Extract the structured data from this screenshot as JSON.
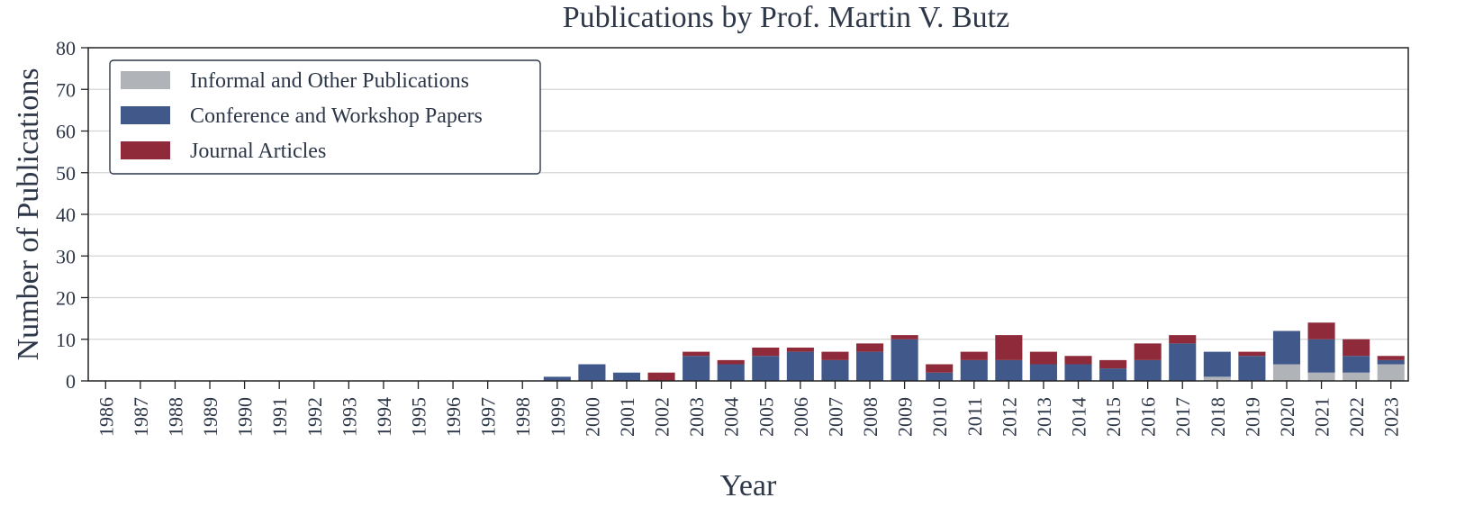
{
  "chart_data": {
    "type": "bar",
    "stacked": true,
    "title": "Publications by Prof. Martin V. Butz",
    "xlabel": "Year",
    "ylabel": "Number of Publications",
    "ylim": [
      0,
      80
    ],
    "yticks": [
      0,
      10,
      20,
      30,
      40,
      50,
      60,
      70,
      80
    ],
    "grid": "horizontal",
    "legend_position": "top-left",
    "categories": [
      "1986",
      "1987",
      "1988",
      "1989",
      "1990",
      "1991",
      "1992",
      "1993",
      "1994",
      "1995",
      "1996",
      "1997",
      "1998",
      "1999",
      "2000",
      "2001",
      "2002",
      "2003",
      "2004",
      "2005",
      "2006",
      "2007",
      "2008",
      "2009",
      "2010",
      "2011",
      "2012",
      "2013",
      "2014",
      "2015",
      "2016",
      "2017",
      "2018",
      "2019",
      "2020",
      "2021",
      "2022",
      "2023"
    ],
    "series": [
      {
        "name": "Informal and Other Publications",
        "color": "#b0b3b8",
        "values": [
          0,
          0,
          0,
          0,
          0,
          0,
          0,
          0,
          0,
          0,
          0,
          0,
          0,
          0,
          0,
          0,
          0,
          0,
          0,
          0,
          0,
          0,
          0,
          0,
          0,
          0,
          0,
          0,
          0,
          0,
          0,
          0,
          1,
          0,
          4,
          2,
          2,
          4
        ]
      },
      {
        "name": "Conference and Workshop Papers",
        "color": "#41598a",
        "values": [
          0,
          0,
          0,
          0,
          0,
          0,
          0,
          0,
          0,
          0,
          0,
          0,
          0,
          1,
          4,
          2,
          0,
          6,
          4,
          6,
          7,
          5,
          7,
          10,
          2,
          5,
          5,
          4,
          4,
          3,
          5,
          9,
          6,
          6,
          8,
          8,
          4,
          1
        ]
      },
      {
        "name": "Journal Articles",
        "color": "#8f2a3a",
        "values": [
          0,
          0,
          0,
          0,
          0,
          0,
          0,
          0,
          0,
          0,
          0,
          0,
          0,
          0,
          0,
          0,
          2,
          1,
          1,
          2,
          1,
          2,
          2,
          1,
          2,
          2,
          6,
          3,
          2,
          2,
          4,
          2,
          0,
          1,
          0,
          4,
          4,
          1
        ]
      }
    ]
  }
}
